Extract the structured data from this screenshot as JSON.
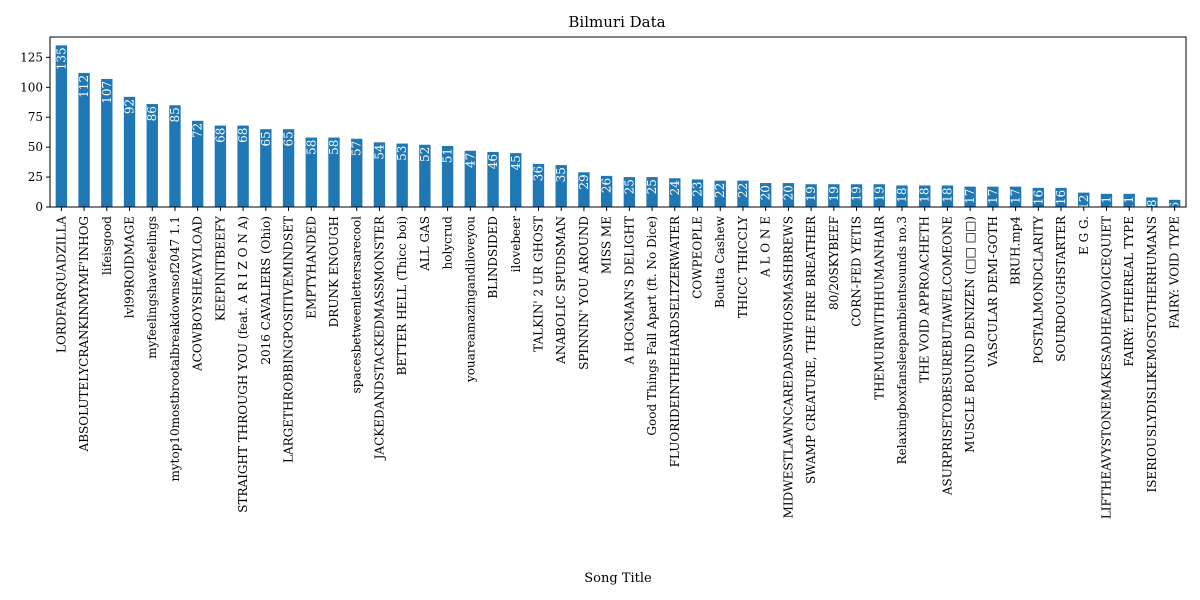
{
  "chart_data": {
    "type": "bar",
    "title": "Bilmuri Data",
    "xlabel": "Song Title",
    "ylabel": "",
    "ylim": [
      0,
      142
    ],
    "yticks": [
      0,
      25,
      50,
      75,
      100,
      125
    ],
    "grid": false,
    "legend": "none",
    "bar_color": "#1f77b4",
    "categories": [
      "LORDFARQUADZILLA",
      "ABSOLUTELYCRANKINMYMF'INHOG",
      "lifeisgood",
      "lvl99ROIDMAGE",
      "myfeelingshavefeelings",
      "mytop10mostbrootalbreakdownsof2047 1.1",
      "ACOWBOYSHEAVYLOAD",
      "KEEPINITBEEFY",
      "STRAIGHT THROUGH YOU (feat. A R I Z O N A)",
      "2016 CAVALIERS (Ohio)",
      "LARGETHROBBINGPOSITIVEMINDSET",
      "EMPTYHANDED",
      "DRUNK ENOUGH",
      "spacesbetweenlettersarecool",
      "JACKEDANDSTACKEDMASSMONSTER",
      "BETTER HELL (Thicc boi)",
      "ALL GAS",
      "holycrud",
      "youareamazingandiloveyou",
      "BLINDSIDED",
      "ilovebeer",
      "TALKIN' 2 UR GHOST",
      "ANABOLIC SPUDSMAN",
      "SPINNIN' YOU AROUND",
      "MISS ME",
      "A HOGMAN'S DELIGHT",
      "Good Things Fall Apart (ft. No Dice)",
      "FLUORIDEINTHEHARDSELTZERWATER",
      "COWPEOPLE",
      "Boutta Cashew",
      "THICC THICCLY",
      "A L O N E",
      "MIDWESTLAWNCAREDADSWHOSMASHBREWS",
      "SWAMP CREATURE, THE FIRE BREATHER",
      "80/20SKYBEEF",
      "CORN-FED YETIS",
      "THEMURIWITHHUMANHAIR",
      "Relaxingboxfansleepambientsounds no.3",
      "THE VOID APPROACHETH",
      "ASURPRISETOBESUREBUTAWELCOMEONE",
      "MUSCLE BOUND DENIZEN (□□ □□)",
      "VASCULAR DEMI-GOTH",
      "BRUH.mp4",
      "POSTALMONDCLARITY",
      "SOURDOUGHSTARTER",
      "E G G.",
      "LIFTHEAVYSTONEMAKESADHEADVOICEQUIET",
      "FAIRY: ETHEREAL TYPE",
      "ISERIOUSLYDISLIKEMOSTOTHERHUMANS",
      "FAIRY: VOID TYPE"
    ],
    "values": [
      135,
      112,
      107,
      92,
      86,
      85,
      72,
      68,
      68,
      65,
      65,
      58,
      58,
      57,
      54,
      53,
      52,
      51,
      47,
      46,
      45,
      36,
      35,
      29,
      26,
      25,
      25,
      24,
      23,
      22,
      22,
      20,
      20,
      19,
      19,
      19,
      19,
      18,
      18,
      18,
      17,
      17,
      17,
      16,
      16,
      12,
      11,
      11,
      8,
      6
    ]
  }
}
